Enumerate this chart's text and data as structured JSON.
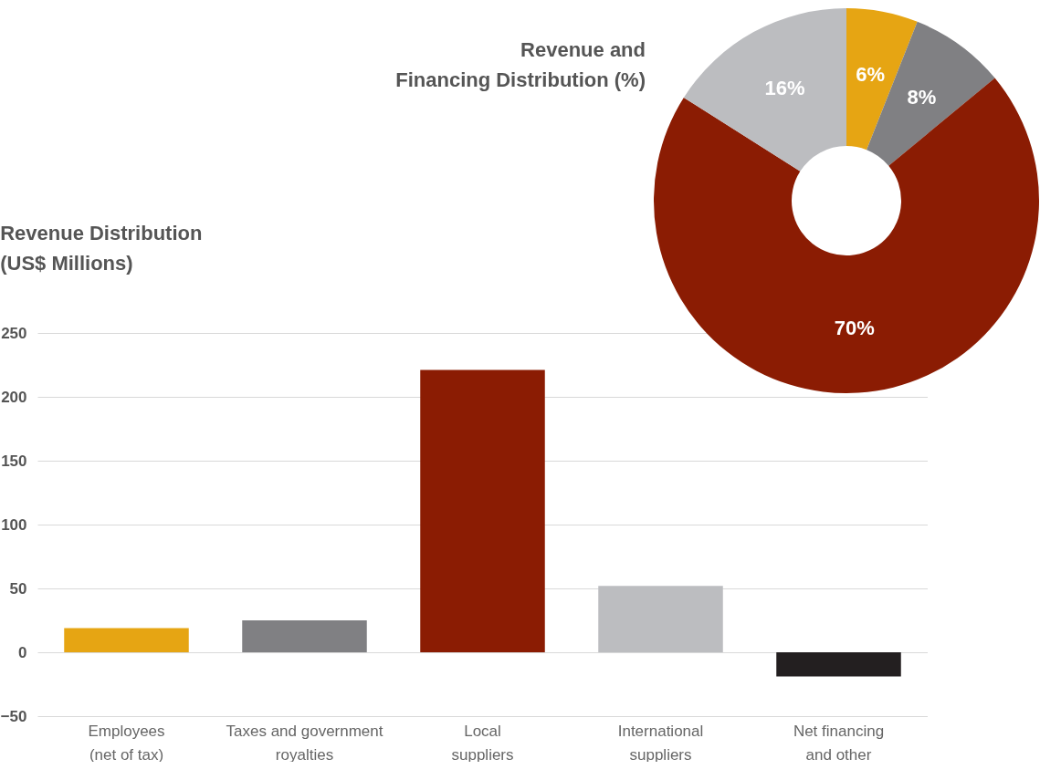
{
  "chart_data": [
    {
      "type": "bar",
      "title": "Revenue Distribution\n(US$ Millions)",
      "categories": [
        "Employees (net of tax)",
        "Taxes and government royalties",
        "Local suppliers",
        "International suppliers",
        "Net financing and other"
      ],
      "values": [
        19,
        25,
        221,
        52,
        -19
      ],
      "colors": [
        "#e6a513",
        "#808083",
        "#8b1c03",
        "#bcbdc0",
        "#231f20"
      ],
      "ylim": [
        -50,
        250
      ],
      "yticks": [
        -50,
        0,
        50,
        100,
        150,
        200,
        250
      ],
      "grid": "y"
    },
    {
      "type": "donut",
      "title": "Revenue and\nFinancing Distribution (%)",
      "categories": [
        null,
        null,
        null,
        null
      ],
      "values": [
        6,
        8,
        70,
        16
      ],
      "colors": [
        "#e6a513",
        "#808083",
        "#8b1c03",
        "#bcbdc0"
      ],
      "value_labels": [
        "6%",
        "8%",
        "70%",
        "16%"
      ]
    }
  ]
}
